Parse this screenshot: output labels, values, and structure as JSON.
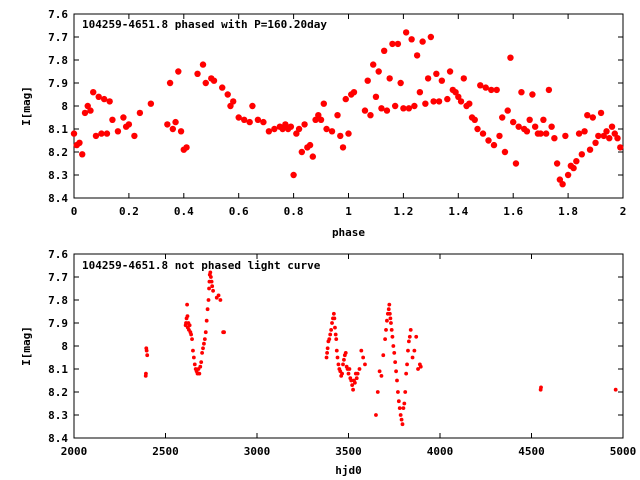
{
  "chart_data": [
    {
      "type": "scatter",
      "title": "104259-4651.8 phased with P=160.20day",
      "xlabel": "phase",
      "ylabel": "I[mag]",
      "xlim": [
        0,
        2
      ],
      "ylim": [
        7.6,
        8.4
      ],
      "y_inverted": true,
      "xticks": [
        "0",
        "0.2",
        "0.4",
        "0.6",
        "0.8",
        "1",
        "1.2",
        "1.4",
        "1.6",
        "1.8",
        "2"
      ],
      "yticks": [
        "7.6",
        "7.7",
        "7.8",
        "7.9",
        "8",
        "8.1",
        "8.2",
        "8.3",
        "8.4"
      ],
      "marker": "filled-circle-large",
      "color": "#ff0000",
      "points": [
        [
          0.0,
          8.12
        ],
        [
          0.01,
          8.17
        ],
        [
          0.02,
          8.16
        ],
        [
          0.03,
          8.21
        ],
        [
          0.04,
          8.03
        ],
        [
          0.05,
          8.0
        ],
        [
          0.06,
          8.02
        ],
        [
          0.07,
          7.94
        ],
        [
          0.08,
          8.13
        ],
        [
          0.09,
          7.96
        ],
        [
          0.1,
          8.12
        ],
        [
          0.11,
          7.97
        ],
        [
          0.12,
          8.12
        ],
        [
          0.13,
          7.98
        ],
        [
          0.14,
          8.06
        ],
        [
          0.16,
          8.11
        ],
        [
          0.18,
          8.05
        ],
        [
          0.19,
          8.09
        ],
        [
          0.2,
          8.08
        ],
        [
          0.22,
          8.13
        ],
        [
          0.24,
          8.03
        ],
        [
          0.28,
          7.99
        ],
        [
          0.34,
          8.08
        ],
        [
          0.35,
          7.9
        ],
        [
          0.36,
          8.1
        ],
        [
          0.37,
          8.07
        ],
        [
          0.38,
          7.85
        ],
        [
          0.39,
          8.11
        ],
        [
          0.4,
          8.19
        ],
        [
          0.41,
          8.18
        ],
        [
          0.45,
          7.86
        ],
        [
          0.47,
          7.82
        ],
        [
          0.48,
          7.9
        ],
        [
          0.5,
          7.88
        ],
        [
          0.51,
          7.89
        ],
        [
          0.54,
          7.92
        ],
        [
          0.56,
          7.95
        ],
        [
          0.57,
          8.0
        ],
        [
          0.58,
          7.98
        ],
        [
          0.6,
          8.05
        ],
        [
          0.62,
          8.06
        ],
        [
          0.64,
          8.07
        ],
        [
          0.65,
          8.0
        ],
        [
          0.67,
          8.06
        ],
        [
          0.69,
          8.07
        ],
        [
          0.71,
          8.11
        ],
        [
          0.73,
          8.1
        ],
        [
          0.75,
          8.09
        ],
        [
          0.76,
          8.1
        ],
        [
          0.77,
          8.08
        ],
        [
          0.78,
          8.1
        ],
        [
          0.79,
          8.09
        ],
        [
          0.8,
          8.3
        ],
        [
          0.81,
          8.12
        ],
        [
          0.82,
          8.1
        ],
        [
          0.83,
          8.2
        ],
        [
          0.84,
          8.08
        ],
        [
          0.85,
          8.18
        ],
        [
          0.86,
          8.17
        ],
        [
          0.87,
          8.22
        ],
        [
          0.88,
          8.06
        ],
        [
          0.89,
          8.04
        ],
        [
          0.9,
          8.06
        ],
        [
          0.91,
          7.99
        ],
        [
          0.92,
          8.1
        ],
        [
          0.94,
          8.11
        ],
        [
          0.96,
          8.04
        ],
        [
          0.97,
          8.13
        ],
        [
          0.98,
          8.18
        ],
        [
          0.99,
          7.97
        ],
        [
          1.0,
          8.12
        ],
        [
          1.01,
          7.95
        ],
        [
          1.02,
          7.94
        ],
        [
          1.06,
          8.02
        ],
        [
          1.07,
          7.89
        ],
        [
          1.08,
          8.04
        ],
        [
          1.09,
          7.82
        ],
        [
          1.1,
          7.96
        ],
        [
          1.11,
          7.85
        ],
        [
          1.12,
          8.01
        ],
        [
          1.13,
          7.76
        ],
        [
          1.14,
          8.02
        ],
        [
          1.15,
          7.88
        ],
        [
          1.16,
          7.73
        ],
        [
          1.17,
          8.0
        ],
        [
          1.18,
          7.73
        ],
        [
          1.19,
          7.9
        ],
        [
          1.2,
          8.01
        ],
        [
          1.21,
          7.68
        ],
        [
          1.22,
          8.01
        ],
        [
          1.23,
          7.71
        ],
        [
          1.24,
          8.0
        ],
        [
          1.25,
          7.78
        ],
        [
          1.26,
          7.94
        ],
        [
          1.27,
          7.72
        ],
        [
          1.28,
          7.99
        ],
        [
          1.29,
          7.88
        ],
        [
          1.3,
          7.7
        ],
        [
          1.31,
          7.98
        ],
        [
          1.32,
          7.86
        ],
        [
          1.33,
          7.98
        ],
        [
          1.34,
          7.89
        ],
        [
          1.36,
          7.97
        ],
        [
          1.37,
          7.85
        ],
        [
          1.38,
          7.93
        ],
        [
          1.39,
          7.94
        ],
        [
          1.4,
          7.96
        ],
        [
          1.41,
          7.98
        ],
        [
          1.42,
          7.88
        ],
        [
          1.43,
          8.0
        ],
        [
          1.44,
          7.99
        ],
        [
          1.45,
          8.05
        ],
        [
          1.46,
          8.06
        ],
        [
          1.47,
          8.1
        ],
        [
          1.48,
          7.91
        ],
        [
          1.49,
          8.12
        ],
        [
          1.5,
          7.92
        ],
        [
          1.51,
          8.15
        ],
        [
          1.52,
          7.93
        ],
        [
          1.53,
          8.17
        ],
        [
          1.54,
          7.93
        ],
        [
          1.55,
          8.13
        ],
        [
          1.56,
          8.05
        ],
        [
          1.57,
          8.2
        ],
        [
          1.58,
          8.02
        ],
        [
          1.59,
          7.79
        ],
        [
          1.6,
          8.07
        ],
        [
          1.61,
          8.25
        ],
        [
          1.62,
          8.09
        ],
        [
          1.63,
          7.94
        ],
        [
          1.64,
          8.1
        ],
        [
          1.65,
          8.11
        ],
        [
          1.66,
          8.06
        ],
        [
          1.67,
          7.95
        ],
        [
          1.68,
          8.09
        ],
        [
          1.69,
          8.12
        ],
        [
          1.7,
          8.12
        ],
        [
          1.71,
          8.06
        ],
        [
          1.72,
          8.12
        ],
        [
          1.73,
          7.93
        ],
        [
          1.74,
          8.09
        ],
        [
          1.75,
          8.14
        ],
        [
          1.76,
          8.25
        ],
        [
          1.77,
          8.32
        ],
        [
          1.78,
          8.34
        ],
        [
          1.79,
          8.13
        ],
        [
          1.8,
          8.3
        ],
        [
          1.81,
          8.26
        ],
        [
          1.82,
          8.27
        ],
        [
          1.83,
          8.24
        ],
        [
          1.84,
          8.12
        ],
        [
          1.85,
          8.21
        ],
        [
          1.86,
          8.11
        ],
        [
          1.87,
          8.04
        ],
        [
          1.88,
          8.19
        ],
        [
          1.89,
          8.05
        ],
        [
          1.9,
          8.16
        ],
        [
          1.91,
          8.13
        ],
        [
          1.92,
          8.03
        ],
        [
          1.93,
          8.13
        ],
        [
          1.94,
          8.11
        ],
        [
          1.95,
          8.14
        ],
        [
          1.96,
          8.09
        ],
        [
          1.97,
          8.12
        ],
        [
          1.98,
          8.14
        ],
        [
          1.99,
          8.18
        ]
      ]
    },
    {
      "type": "scatter",
      "title": "104259-4651.8 not phased light curve",
      "xlabel": "hjd0",
      "ylabel": "I[mag]",
      "xlim": [
        2000,
        5000
      ],
      "ylim": [
        7.6,
        8.4
      ],
      "y_inverted": true,
      "xticks": [
        "2000",
        "2500",
        "3000",
        "3500",
        "4000",
        "4500",
        "5000"
      ],
      "yticks": [
        "7.6",
        "7.7",
        "7.8",
        "7.9",
        "8",
        "8.1",
        "8.2",
        "8.3",
        "8.4"
      ],
      "marker": "filled-circle-small",
      "color": "#ff0000",
      "points": [
        [
          2392,
          8.13
        ],
        [
          2393,
          8.12
        ],
        [
          2395,
          8.01
        ],
        [
          2397,
          8.02
        ],
        [
          2400,
          8.04
        ],
        [
          2610,
          7.91
        ],
        [
          2612,
          7.9
        ],
        [
          2615,
          7.88
        ],
        [
          2618,
          7.82
        ],
        [
          2620,
          7.87
        ],
        [
          2622,
          7.92
        ],
        [
          2625,
          7.9
        ],
        [
          2628,
          7.93
        ],
        [
          2632,
          7.91
        ],
        [
          2636,
          7.94
        ],
        [
          2640,
          7.95
        ],
        [
          2645,
          7.97
        ],
        [
          2650,
          8.02
        ],
        [
          2655,
          8.05
        ],
        [
          2660,
          8.08
        ],
        [
          2665,
          8.1
        ],
        [
          2670,
          8.11
        ],
        [
          2675,
          8.12
        ],
        [
          2680,
          8.1
        ],
        [
          2685,
          8.12
        ],
        [
          2690,
          8.09
        ],
        [
          2695,
          8.07
        ],
        [
          2700,
          8.03
        ],
        [
          2705,
          8.01
        ],
        [
          2710,
          7.99
        ],
        [
          2715,
          7.97
        ],
        [
          2720,
          7.94
        ],
        [
          2725,
          7.89
        ],
        [
          2730,
          7.84
        ],
        [
          2735,
          7.8
        ],
        [
          2738,
          7.75
        ],
        [
          2740,
          7.72
        ],
        [
          2742,
          7.69
        ],
        [
          2745,
          7.68
        ],
        [
          2748,
          7.7
        ],
        [
          2752,
          7.72
        ],
        [
          2755,
          7.74
        ],
        [
          2760,
          7.76
        ],
        [
          2780,
          7.79
        ],
        [
          2790,
          7.78
        ],
        [
          2800,
          7.8
        ],
        [
          2815,
          7.94
        ],
        [
          2820,
          7.94
        ],
        [
          3380,
          8.05
        ],
        [
          3383,
          8.03
        ],
        [
          3386,
          8.01
        ],
        [
          3390,
          7.98
        ],
        [
          3395,
          7.97
        ],
        [
          3400,
          7.95
        ],
        [
          3405,
          7.93
        ],
        [
          3410,
          7.9
        ],
        [
          3415,
          7.88
        ],
        [
          3420,
          7.86
        ],
        [
          3423,
          7.88
        ],
        [
          3426,
          7.92
        ],
        [
          3430,
          7.95
        ],
        [
          3433,
          7.97
        ],
        [
          3436,
          8.02
        ],
        [
          3440,
          8.05
        ],
        [
          3445,
          8.08
        ],
        [
          3450,
          8.1
        ],
        [
          3455,
          8.11
        ],
        [
          3460,
          8.13
        ],
        [
          3465,
          8.12
        ],
        [
          3470,
          8.08
        ],
        [
          3475,
          8.06
        ],
        [
          3480,
          8.04
        ],
        [
          3485,
          8.03
        ],
        [
          3490,
          8.09
        ],
        [
          3495,
          8.1
        ],
        [
          3500,
          8.12
        ],
        [
          3505,
          8.1
        ],
        [
          3510,
          8.14
        ],
        [
          3515,
          8.15
        ],
        [
          3520,
          8.17
        ],
        [
          3525,
          8.19
        ],
        [
          3530,
          8.15
        ],
        [
          3535,
          8.16
        ],
        [
          3540,
          8.12
        ],
        [
          3545,
          8.14
        ],
        [
          3550,
          8.12
        ],
        [
          3560,
          8.1
        ],
        [
          3570,
          8.02
        ],
        [
          3580,
          8.05
        ],
        [
          3590,
          8.08
        ],
        [
          3650,
          8.3
        ],
        [
          3660,
          8.2
        ],
        [
          3670,
          8.11
        ],
        [
          3680,
          8.13
        ],
        [
          3690,
          8.04
        ],
        [
          3700,
          7.97
        ],
        [
          3705,
          7.93
        ],
        [
          3710,
          7.89
        ],
        [
          3715,
          7.86
        ],
        [
          3720,
          7.84
        ],
        [
          3723,
          7.82
        ],
        [
          3726,
          7.86
        ],
        [
          3729,
          7.88
        ],
        [
          3732,
          7.9
        ],
        [
          3736,
          7.93
        ],
        [
          3740,
          7.96
        ],
        [
          3745,
          8.0
        ],
        [
          3750,
          8.03
        ],
        [
          3755,
          8.07
        ],
        [
          3760,
          8.11
        ],
        [
          3765,
          8.15
        ],
        [
          3770,
          8.2
        ],
        [
          3775,
          8.24
        ],
        [
          3780,
          8.27
        ],
        [
          3785,
          8.3
        ],
        [
          3790,
          8.32
        ],
        [
          3795,
          8.34
        ],
        [
          3800,
          8.27
        ],
        [
          3805,
          8.25
        ],
        [
          3810,
          8.2
        ],
        [
          3815,
          8.12
        ],
        [
          3820,
          8.08
        ],
        [
          3825,
          8.02
        ],
        [
          3830,
          7.98
        ],
        [
          3835,
          7.96
        ],
        [
          3840,
          7.93
        ],
        [
          3850,
          8.05
        ],
        [
          3860,
          8.02
        ],
        [
          3870,
          7.96
        ],
        [
          3880,
          8.1
        ],
        [
          3890,
          8.08
        ],
        [
          3895,
          8.09
        ],
        [
          4550,
          8.19
        ],
        [
          4552,
          8.18
        ],
        [
          4960,
          8.19
        ]
      ]
    }
  ]
}
